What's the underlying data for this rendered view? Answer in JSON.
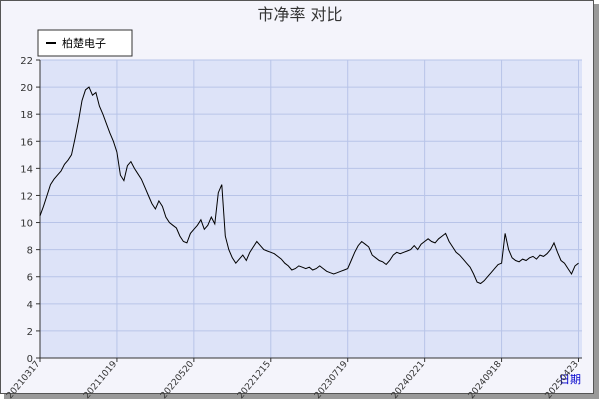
{
  "chart_data": {
    "type": "line",
    "title": "市净率  对比",
    "x_label": "日期",
    "series": [
      {
        "name": "柏楚电子",
        "color": "#000000",
        "values": [
          10.5,
          11.2,
          12.0,
          12.8,
          13.2,
          13.5,
          13.8,
          14.3,
          14.6,
          15.0,
          16.2,
          17.5,
          19.0,
          19.8,
          20.0,
          19.4,
          19.6,
          18.6,
          18.0,
          17.3,
          16.6,
          16.0,
          15.2,
          13.5,
          13.1,
          14.2,
          14.5,
          14.0,
          13.6,
          13.2,
          12.6,
          12.0,
          11.4,
          11.0,
          11.6,
          11.2,
          10.4,
          10.0,
          9.8,
          9.6,
          9.0,
          8.6,
          8.5,
          9.2,
          9.5,
          9.8,
          10.2,
          9.5,
          9.8,
          10.4,
          9.9,
          12.2,
          12.8,
          9.0,
          8.0,
          7.4,
          7.0,
          7.3,
          7.6,
          7.2,
          7.8,
          8.2,
          8.6,
          8.3,
          8.0,
          7.9,
          7.8,
          7.7,
          7.5,
          7.3,
          7.0,
          6.8,
          6.5,
          6.6,
          6.8,
          6.7,
          6.6,
          6.7,
          6.5,
          6.6,
          6.8,
          6.6,
          6.4,
          6.3,
          6.2,
          6.3,
          6.4,
          6.5,
          6.6,
          7.2,
          7.8,
          8.3,
          8.6,
          8.4,
          8.2,
          7.6,
          7.4,
          7.2,
          7.1,
          6.9,
          7.2,
          7.6,
          7.8,
          7.7,
          7.8,
          7.9,
          8.0,
          8.3,
          8.0,
          8.4,
          8.6,
          8.8,
          8.6,
          8.5,
          8.8,
          9.0,
          9.2,
          8.6,
          8.2,
          7.8,
          7.6,
          7.3,
          7.0,
          6.7,
          6.2,
          5.6,
          5.5,
          5.7,
          6.0,
          6.3,
          6.6,
          6.9,
          7.0,
          9.2,
          8.0,
          7.4,
          7.2,
          7.1,
          7.3,
          7.2,
          7.4,
          7.5,
          7.3,
          7.6,
          7.5,
          7.7,
          8.0,
          8.5,
          7.8,
          7.2,
          7.0,
          6.6,
          6.2,
          6.8,
          7.0
        ]
      }
    ],
    "xlim": [
      0,
      155
    ],
    "xticks": [
      {
        "value": 0,
        "label": "20210317"
      },
      {
        "value": 22,
        "label": "20211019"
      },
      {
        "value": 44,
        "label": "20220520"
      },
      {
        "value": 66,
        "label": "20221215"
      },
      {
        "value": 88,
        "label": "20230719"
      },
      {
        "value": 110,
        "label": "20240221"
      },
      {
        "value": 132,
        "label": "20240918"
      },
      {
        "value": 154,
        "label": "20250423"
      }
    ],
    "ylim": [
      0,
      22
    ],
    "yticks": [
      0,
      2,
      4,
      6,
      8,
      10,
      12,
      14,
      16,
      18,
      20,
      22
    ],
    "grid": true,
    "legend": "top-left"
  }
}
